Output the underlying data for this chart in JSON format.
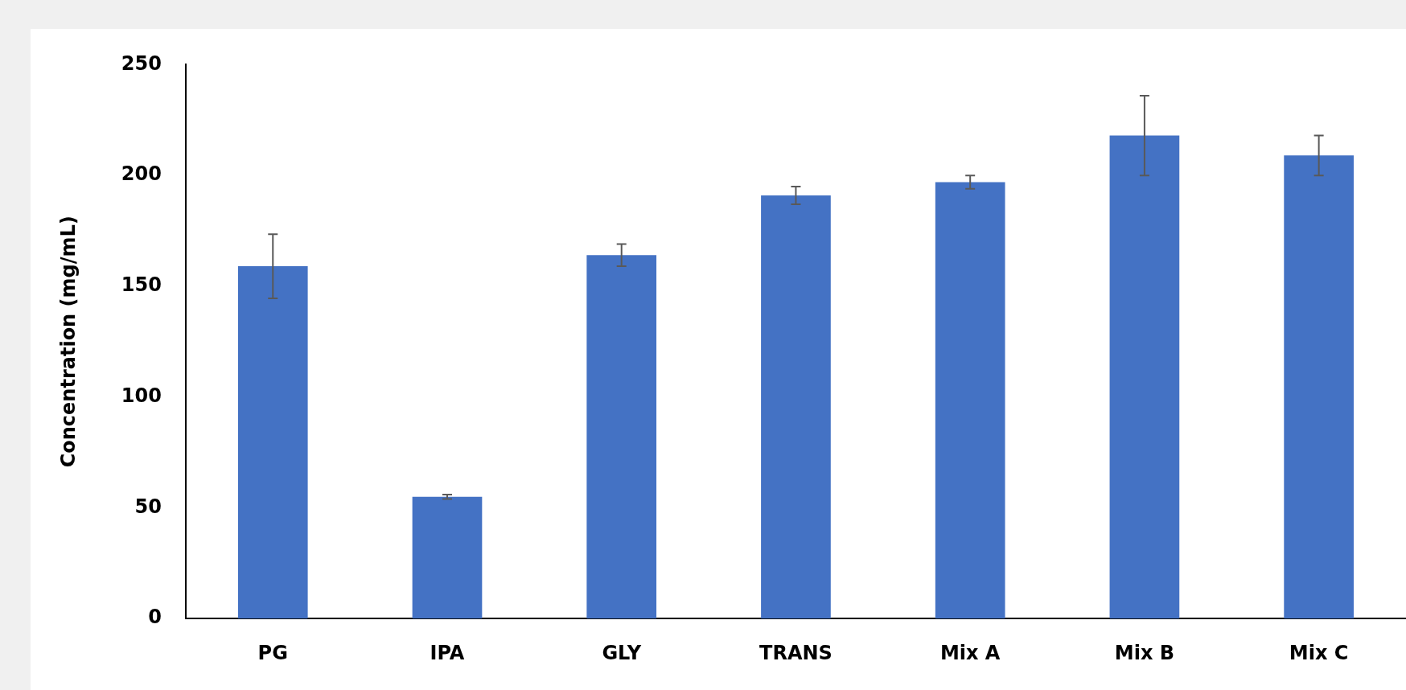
{
  "chart_data": {
    "type": "bar",
    "ylabel": "Concentration (mg/mL)",
    "categories": [
      "PG",
      "IPA",
      "GLY",
      "TRANS",
      "Mix A",
      "Mix B",
      "Mix C"
    ],
    "values": [
      159,
      55,
      164,
      191,
      197,
      218,
      209
    ],
    "errors": [
      14.5,
      1,
      5,
      4,
      3,
      18,
      9
    ],
    "color": "#4472c4",
    "ylim": [
      0,
      250
    ],
    "yticks": [
      0,
      50,
      100,
      150,
      200,
      250
    ],
    "grid": false,
    "legend": false
  }
}
